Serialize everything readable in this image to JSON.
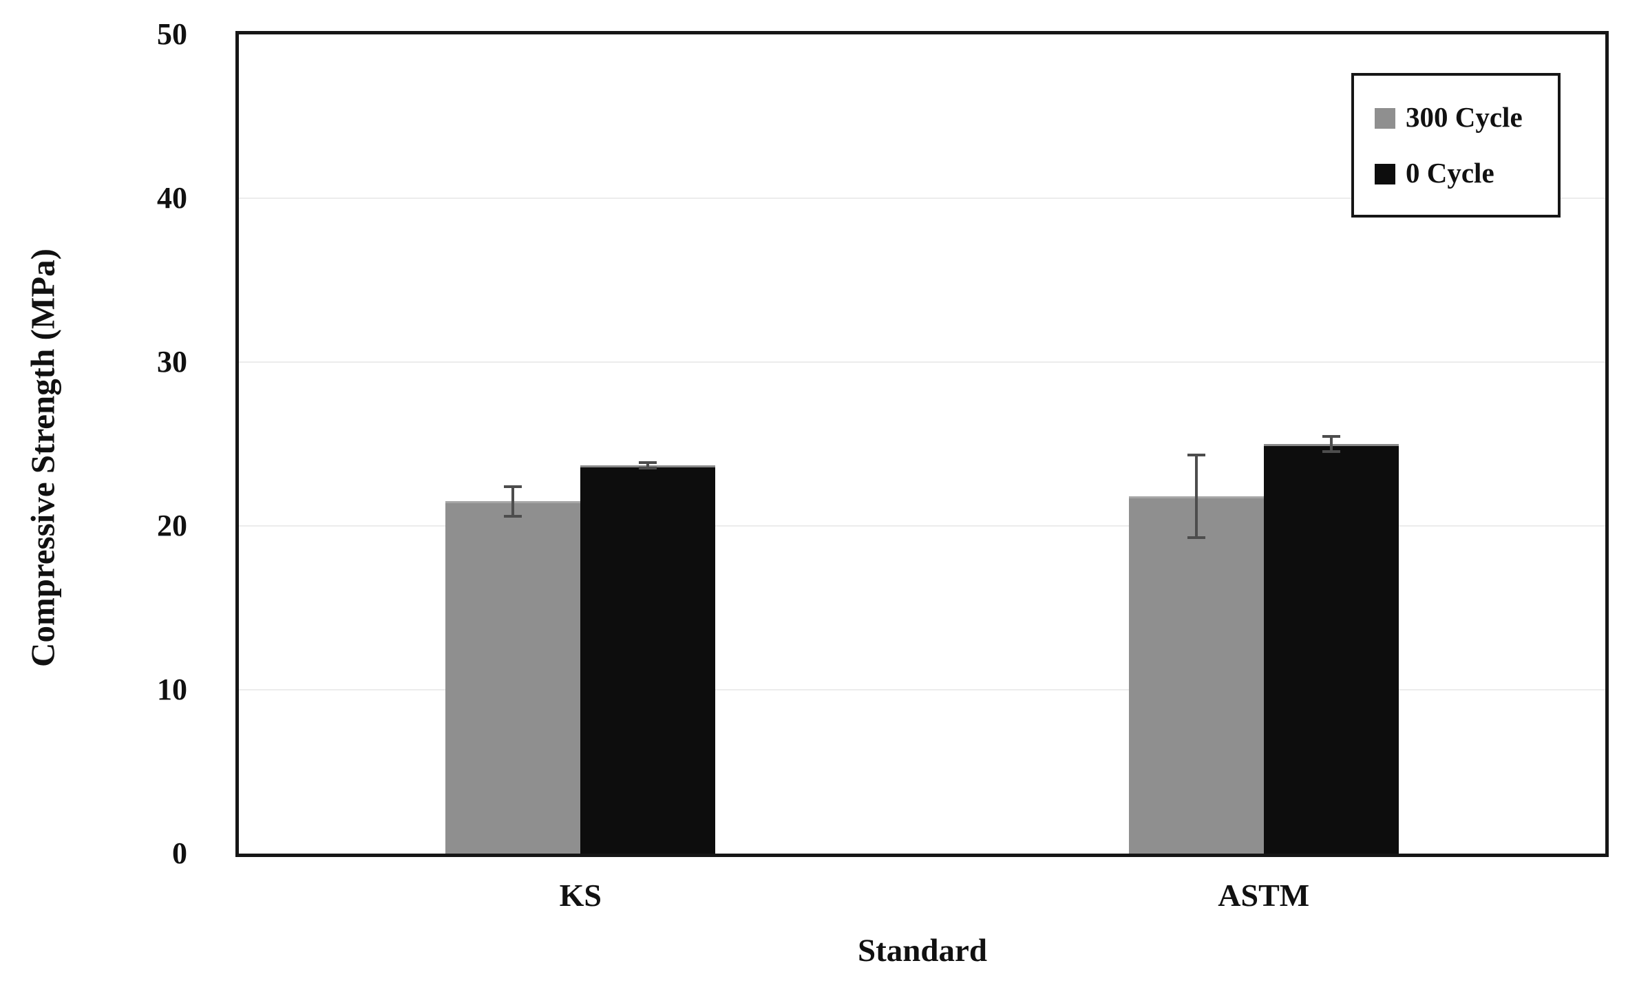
{
  "figure": {
    "background": "#ffffff"
  },
  "chart_data": {
    "type": "bar",
    "title": "",
    "xlabel": "Standard",
    "ylabel": "Compressive Strength (MPa)",
    "categories": [
      "KS",
      "ASTM"
    ],
    "series": [
      {
        "name": "300 Cycle",
        "color": "#8f8f8f",
        "edge_color": "#a6a6a6",
        "values": [
          21.5,
          21.8
        ],
        "errors": [
          1.0,
          2.6
        ]
      },
      {
        "name": "0 Cycle",
        "color": "#0d0d0d",
        "edge_color": "#8a8a8a",
        "values": [
          23.7,
          25.0
        ],
        "errors": [
          0.25,
          0.55
        ]
      }
    ],
    "ylim": [
      0,
      50
    ],
    "yticks": [
      0,
      10,
      20,
      30,
      40,
      50
    ],
    "grid": "horizontal-light",
    "legend_position": "top-right"
  },
  "colors": {
    "axis_border": "#161616",
    "gridline": "#ececec",
    "error_bar": "#4d4d4d",
    "text": "#111111",
    "background": "#ffffff"
  }
}
